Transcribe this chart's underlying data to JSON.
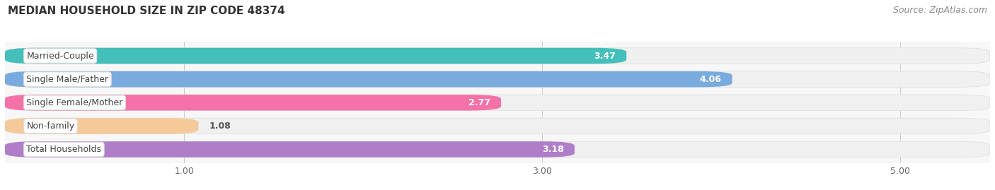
{
  "title": "MEDIAN HOUSEHOLD SIZE IN ZIP CODE 48374",
  "source": "Source: ZipAtlas.com",
  "categories": [
    "Married-Couple",
    "Single Male/Father",
    "Single Female/Mother",
    "Non-family",
    "Total Households"
  ],
  "values": [
    3.47,
    4.06,
    2.77,
    1.08,
    3.18
  ],
  "bar_colors": [
    "#44bfba",
    "#7aabdf",
    "#f472a8",
    "#f5c99a",
    "#b07ec8"
  ],
  "bar_bg_colors": [
    "#eeeeee",
    "#eeeeee",
    "#eeeeee",
    "#eeeeee",
    "#eeeeee"
  ],
  "xlim": [
    0.0,
    5.5
  ],
  "xmin": 0.0,
  "xmax": 5.5,
  "xticks": [
    1.0,
    3.0,
    5.0
  ],
  "title_fontsize": 11,
  "source_fontsize": 9,
  "value_fontsize": 9,
  "tick_fontsize": 9,
  "category_fontsize": 9,
  "background_color": "#ffffff",
  "plot_bg_color": "#f7f7f7",
  "value_label_threshold": 2.5
}
